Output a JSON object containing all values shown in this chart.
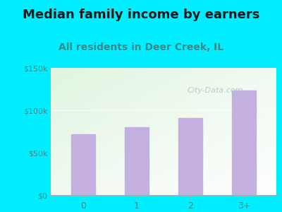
{
  "title": "Median family income by earners",
  "subtitle": "All residents in Deer Creek, IL",
  "categories": [
    "0",
    "1",
    "2",
    "3+"
  ],
  "values": [
    72000,
    80000,
    91000,
    123000
  ],
  "bar_color": "#c4b0e0",
  "ylim": [
    0,
    150000
  ],
  "yticks": [
    0,
    50000,
    100000,
    150000
  ],
  "ytick_labels": [
    "$0",
    "$50k",
    "$100k",
    "$150k"
  ],
  "title_fontsize": 13,
  "subtitle_fontsize": 10,
  "title_color": "#1a1a1a",
  "subtitle_color": "#3a8a8a",
  "tick_color": "#3a8a8a",
  "background_outer": "#00eeff",
  "watermark": "City-Data.com"
}
